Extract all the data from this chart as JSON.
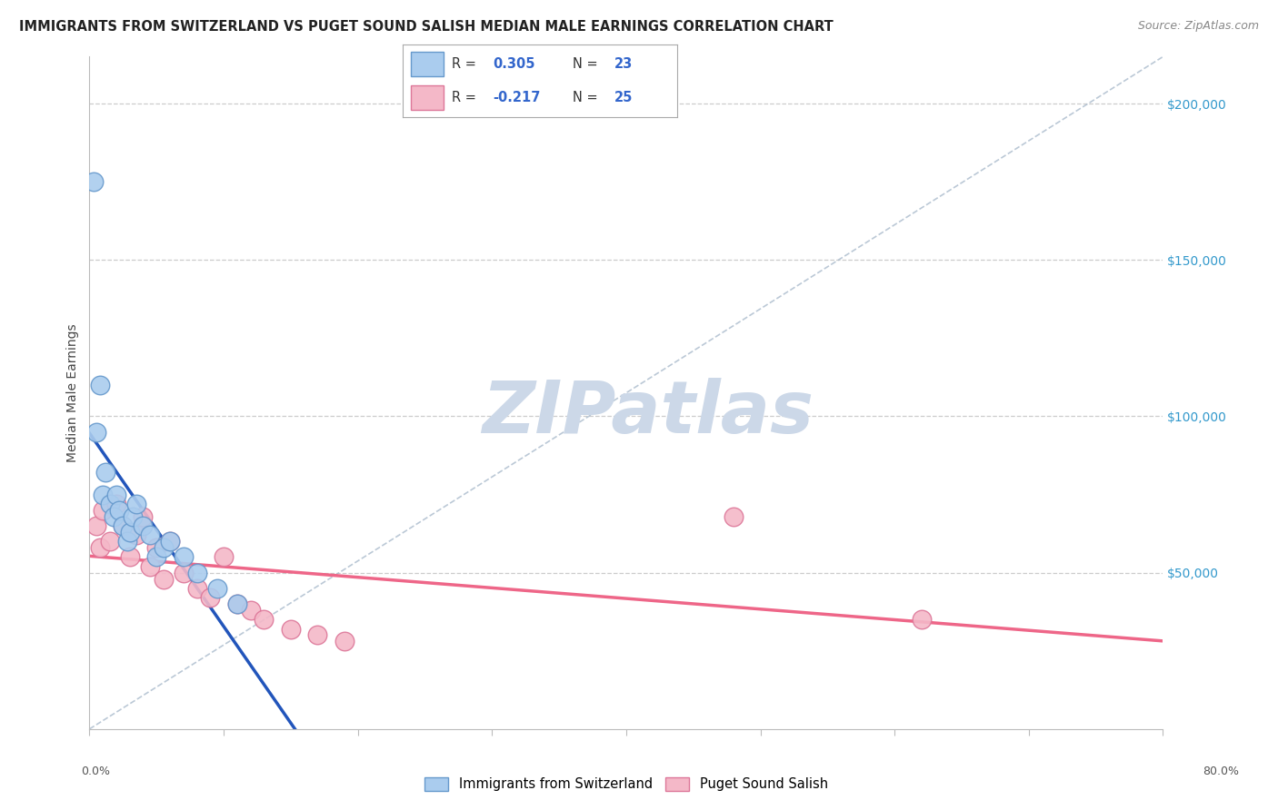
{
  "title": "IMMIGRANTS FROM SWITZERLAND VS PUGET SOUND SALISH MEDIAN MALE EARNINGS CORRELATION CHART",
  "source": "Source: ZipAtlas.com",
  "ylabel": "Median Male Earnings",
  "series": [
    {
      "name": "Immigrants from Switzerland",
      "color": "#aaccee",
      "edge_color": "#6699cc",
      "R": 0.305,
      "N": 23,
      "trend_color": "#2255bb",
      "x": [
        0.3,
        0.5,
        0.8,
        1.0,
        1.2,
        1.5,
        1.8,
        2.0,
        2.2,
        2.5,
        2.8,
        3.0,
        3.2,
        3.5,
        4.0,
        4.5,
        5.0,
        5.5,
        6.0,
        7.0,
        8.0,
        9.5,
        11.0
      ],
      "y": [
        175000,
        95000,
        110000,
        75000,
        82000,
        72000,
        68000,
        75000,
        70000,
        65000,
        60000,
        63000,
        68000,
        72000,
        65000,
        62000,
        55000,
        58000,
        60000,
        55000,
        50000,
        45000,
        40000
      ]
    },
    {
      "name": "Puget Sound Salish",
      "color": "#f4b8c8",
      "edge_color": "#dd7799",
      "R": -0.217,
      "N": 25,
      "trend_color": "#ee6688",
      "x": [
        0.5,
        0.8,
        1.0,
        1.5,
        2.0,
        2.5,
        3.0,
        3.5,
        4.0,
        4.5,
        5.0,
        5.5,
        6.0,
        7.0,
        8.0,
        9.0,
        10.0,
        11.0,
        12.0,
        13.0,
        15.0,
        17.0,
        19.0,
        48.0,
        62.0
      ],
      "y": [
        65000,
        58000,
        70000,
        60000,
        72000,
        65000,
        55000,
        62000,
        68000,
        52000,
        58000,
        48000,
        60000,
        50000,
        45000,
        42000,
        55000,
        40000,
        38000,
        35000,
        32000,
        30000,
        28000,
        68000,
        35000
      ]
    }
  ],
  "xlim": [
    0,
    80
  ],
  "ylim": [
    0,
    215000
  ],
  "yticks": [
    50000,
    100000,
    150000,
    200000
  ],
  "ytick_labels": [
    "$50,000",
    "$100,000",
    "$150,000",
    "$200,000"
  ],
  "xtick_positions": [
    0,
    10,
    20,
    30,
    40,
    50,
    60,
    70,
    80
  ],
  "xtick_labels_left": "0.0%",
  "xtick_labels_right": "80.0%",
  "grid_color": "#cccccc",
  "background_color": "#ffffff",
  "watermark_text": "ZIPatlas",
  "watermark_color": "#ccd8e8",
  "diagonal_color": "#aabbcc"
}
